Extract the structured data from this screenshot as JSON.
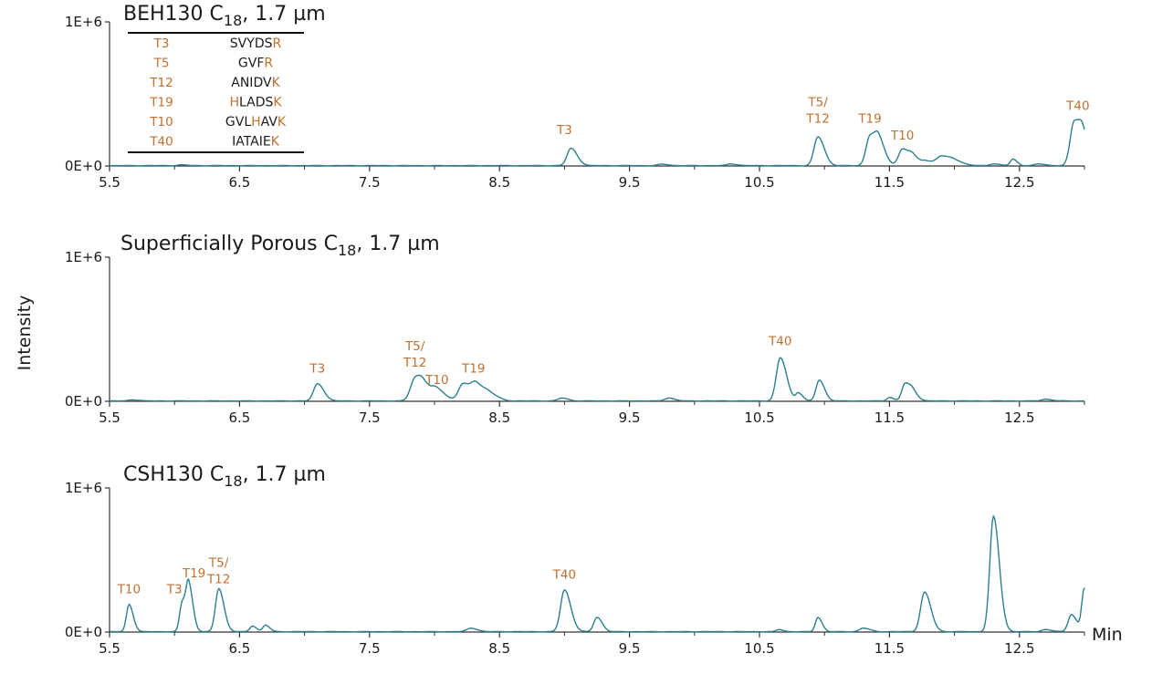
{
  "figure": {
    "ylabel": "Intensity",
    "xunit": "Min",
    "accent_color": "#c07030",
    "trace_color": "#2a7f8f"
  },
  "legend": {
    "rows": [
      {
        "label": "T3",
        "seq": "SVYDSR",
        "highlight": [
          5
        ]
      },
      {
        "label": "T5",
        "seq": "GVFR",
        "highlight": [
          3
        ]
      },
      {
        "label": "T12",
        "seq": "ANIDVK",
        "highlight": [
          5
        ]
      },
      {
        "label": "T19",
        "seq": "HLADSK",
        "highlight": [
          0,
          5
        ]
      },
      {
        "label": "T10",
        "seq": "GVLHAVK",
        "highlight": [
          3,
          6
        ]
      },
      {
        "label": "T40",
        "seq": "IATAIEK",
        "highlight": [
          6
        ]
      }
    ]
  },
  "chart_data": [
    {
      "type": "line",
      "title": "BEH130 C18, 1.7 µm",
      "title_main": "BEH130 C",
      "title_sub": "18",
      "title_tail": ", 1.7 µm",
      "xlabel": "Min",
      "ylabel": "Intensity",
      "xlim": [
        5.5,
        13.0
      ],
      "ylim": [
        0,
        1000000
      ],
      "xticks": [
        "5.5",
        "6.5",
        "7.5",
        "8.5",
        "9.5",
        "10.5",
        "11.5",
        "12.5"
      ],
      "yticks": [
        "0E+0",
        "1E+6"
      ],
      "peaks": [
        {
          "x": 6.05,
          "y": 5000,
          "w": 0.03
        },
        {
          "x": 9.05,
          "y": 120000,
          "w": 0.03
        },
        {
          "x": 9.75,
          "y": 10000,
          "w": 0.03
        },
        {
          "x": 10.28,
          "y": 12000,
          "w": 0.03
        },
        {
          "x": 10.95,
          "y": 200000,
          "w": 0.03
        },
        {
          "x": 11.35,
          "y": 205000,
          "w": 0.03
        },
        {
          "x": 11.42,
          "y": 150000,
          "w": 0.03
        },
        {
          "x": 11.6,
          "y": 115000,
          "w": 0.03
        },
        {
          "x": 11.68,
          "y": 60000,
          "w": 0.03
        },
        {
          "x": 11.78,
          "y": 30000,
          "w": 0.03
        },
        {
          "x": 11.9,
          "y": 65000,
          "w": 0.04
        },
        {
          "x": 12.0,
          "y": 30000,
          "w": 0.04
        },
        {
          "x": 12.3,
          "y": 12000,
          "w": 0.03
        },
        {
          "x": 12.45,
          "y": 45000,
          "w": 0.02
        },
        {
          "x": 12.65,
          "y": 12000,
          "w": 0.03
        },
        {
          "x": 12.92,
          "y": 300000,
          "w": 0.03
        },
        {
          "x": 12.99,
          "y": 180000,
          "w": 0.03
        }
      ],
      "annotations": [
        {
          "lines": [
            "T3"
          ],
          "x": 9.0,
          "y": 220000
        },
        {
          "lines": [
            "T5/",
            "T12"
          ],
          "x": 10.95,
          "y": 300000
        },
        {
          "lines": [
            "T19"
          ],
          "x": 11.35,
          "y": 300000
        },
        {
          "lines": [
            "T10"
          ],
          "x": 11.6,
          "y": 185000
        },
        {
          "lines": [
            "T40"
          ],
          "x": 12.95,
          "y": 390000
        }
      ]
    },
    {
      "type": "line",
      "title": "Superficially Porous C18, 1.7 µm",
      "title_main": "Superficially Porous C",
      "title_sub": "18",
      "title_tail": ", 1.7 µm",
      "xlabel": "Min",
      "ylabel": "Intensity",
      "xlim": [
        5.5,
        13.0
      ],
      "ylim": [
        0,
        1000000
      ],
      "xticks": [
        "5.5",
        "6.5",
        "7.5",
        "8.5",
        "9.5",
        "10.5",
        "11.5",
        "12.5"
      ],
      "yticks": [
        "0E+0",
        "1E+6"
      ],
      "peaks": [
        {
          "x": 5.68,
          "y": 8000,
          "w": 0.03
        },
        {
          "x": 7.1,
          "y": 120000,
          "w": 0.03
        },
        {
          "x": 7.85,
          "y": 150000,
          "w": 0.035
        },
        {
          "x": 7.92,
          "y": 80000,
          "w": 0.04
        },
        {
          "x": 8.02,
          "y": 70000,
          "w": 0.04
        },
        {
          "x": 8.22,
          "y": 120000,
          "w": 0.035
        },
        {
          "x": 8.32,
          "y": 110000,
          "w": 0.035
        },
        {
          "x": 8.42,
          "y": 50000,
          "w": 0.04
        },
        {
          "x": 8.98,
          "y": 20000,
          "w": 0.03
        },
        {
          "x": 9.8,
          "y": 20000,
          "w": 0.03
        },
        {
          "x": 10.66,
          "y": 300000,
          "w": 0.03
        },
        {
          "x": 10.8,
          "y": 55000,
          "w": 0.02
        },
        {
          "x": 10.96,
          "y": 145000,
          "w": 0.025
        },
        {
          "x": 11.5,
          "y": 25000,
          "w": 0.02
        },
        {
          "x": 11.62,
          "y": 120000,
          "w": 0.025
        },
        {
          "x": 11.68,
          "y": 55000,
          "w": 0.025
        },
        {
          "x": 12.7,
          "y": 12000,
          "w": 0.03
        }
      ],
      "annotations": [
        {
          "lines": [
            "T3"
          ],
          "x": 7.1,
          "y": 200000
        },
        {
          "lines": [
            "T5/",
            "T12"
          ],
          "x": 7.85,
          "y": 240000
        },
        {
          "lines": [
            "T10"
          ],
          "x": 8.02,
          "y": 120000
        },
        {
          "lines": [
            "T19"
          ],
          "x": 8.3,
          "y": 200000
        },
        {
          "lines": [
            "T40"
          ],
          "x": 10.66,
          "y": 390000
        }
      ]
    },
    {
      "type": "line",
      "title": "CSH130 C18, 1.7 µm",
      "title_main": "CSH130 C",
      "title_sub": "18",
      "title_tail": ", 1.7 µm",
      "xlabel": "Min",
      "ylabel": "Intensity",
      "xlim": [
        5.5,
        13.0
      ],
      "ylim": [
        0,
        1000000
      ],
      "xticks": [
        "5.5",
        "6.5",
        "7.5",
        "8.5",
        "9.5",
        "10.5",
        "11.5",
        "12.5"
      ],
      "yticks": [
        "0E+0",
        "1E+6"
      ],
      "peaks": [
        {
          "x": 5.65,
          "y": 190000,
          "w": 0.02
        },
        {
          "x": 6.06,
          "y": 205000,
          "w": 0.02
        },
        {
          "x": 6.11,
          "y": 300000,
          "w": 0.02
        },
        {
          "x": 6.34,
          "y": 300000,
          "w": 0.025
        },
        {
          "x": 6.6,
          "y": 40000,
          "w": 0.02
        },
        {
          "x": 6.7,
          "y": 45000,
          "w": 0.02
        },
        {
          "x": 8.28,
          "y": 25000,
          "w": 0.03
        },
        {
          "x": 9.0,
          "y": 290000,
          "w": 0.03
        },
        {
          "x": 9.25,
          "y": 100000,
          "w": 0.025
        },
        {
          "x": 10.65,
          "y": 15000,
          "w": 0.02
        },
        {
          "x": 10.95,
          "y": 100000,
          "w": 0.02
        },
        {
          "x": 11.3,
          "y": 25000,
          "w": 0.03
        },
        {
          "x": 11.77,
          "y": 275000,
          "w": 0.03
        },
        {
          "x": 12.3,
          "y": 800000,
          "w": 0.028
        },
        {
          "x": 12.7,
          "y": 15000,
          "w": 0.03
        },
        {
          "x": 12.9,
          "y": 120000,
          "w": 0.025
        },
        {
          "x": 13.0,
          "y": 300000,
          "w": 0.02
        }
      ],
      "annotations": [
        {
          "lines": [
            "T10"
          ],
          "x": 5.65,
          "y": 270000
        },
        {
          "lines": [
            "T3"
          ],
          "x": 6.0,
          "y": 270000
        },
        {
          "lines": [
            "T19"
          ],
          "x": 6.15,
          "y": 380000
        },
        {
          "lines": [
            "T5/",
            "T12"
          ],
          "x": 6.34,
          "y": 340000
        },
        {
          "lines": [
            "T40"
          ],
          "x": 9.0,
          "y": 370000
        }
      ]
    }
  ]
}
